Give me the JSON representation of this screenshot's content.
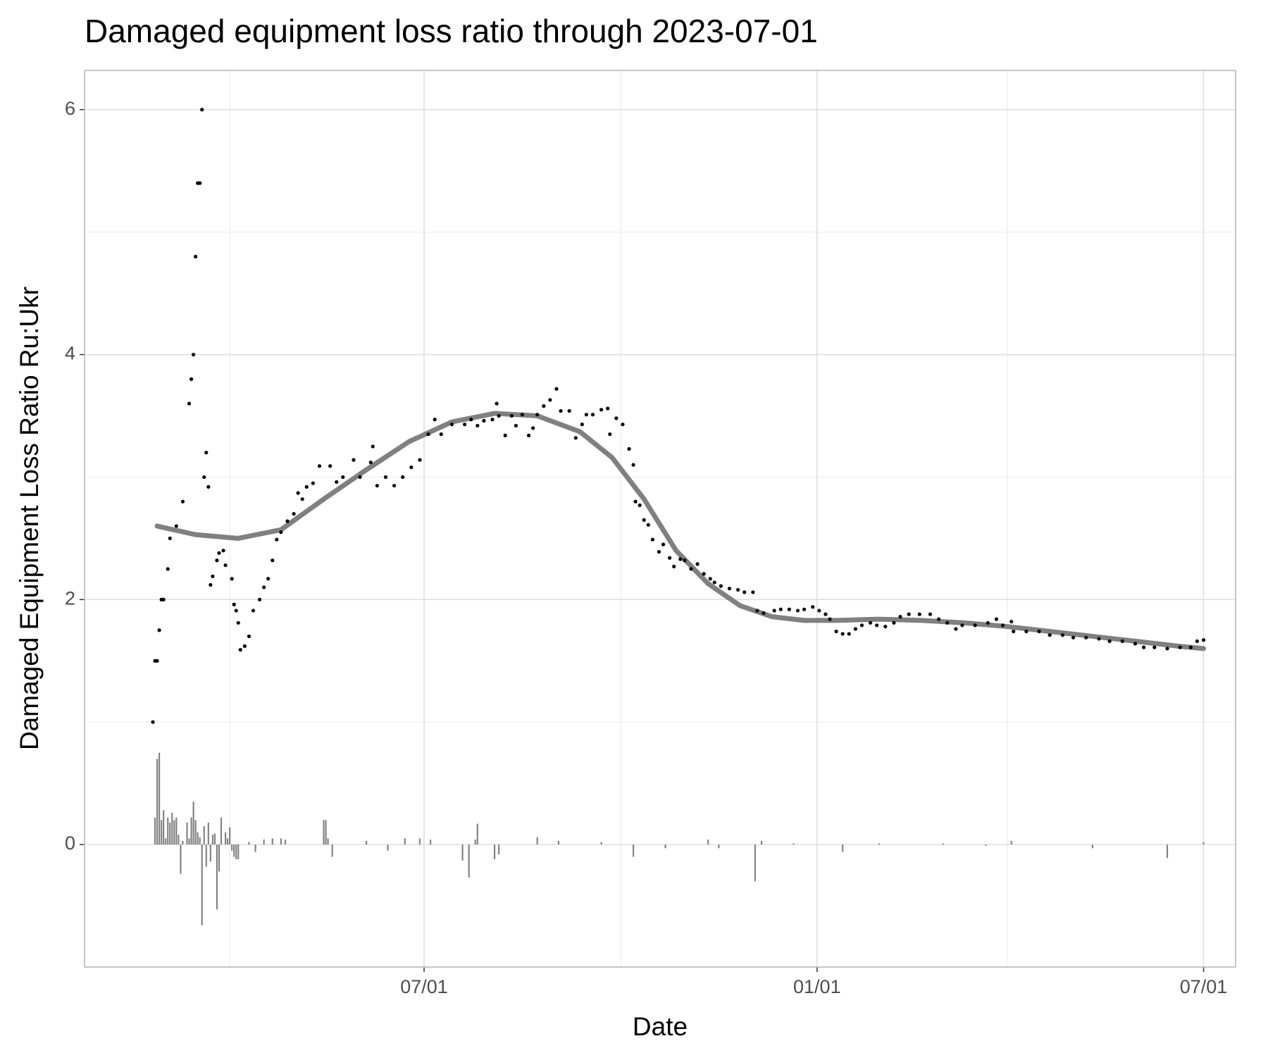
{
  "chart_data": {
    "type": "scatter",
    "title": "Damaged equipment loss ratio through 2023-07-01",
    "x_label": "Date",
    "y_label": "Damaged Equipment Loss Ratio Ru:Ukr",
    "xlim": [
      -32,
      507
    ],
    "ylim": [
      -1,
      6.32
    ],
    "xticks": [
      {
        "value": 127,
        "label": "07/01"
      },
      {
        "value": 311,
        "label": "01/01"
      },
      {
        "value": 492,
        "label": "07/01"
      }
    ],
    "yticks": [
      0,
      2,
      4,
      6
    ],
    "x_minor_ticks": [
      36,
      219,
      400
    ],
    "y_minor_ticks": [
      1,
      3,
      5
    ],
    "grid": true,
    "series": [
      {
        "type": "bar",
        "color": "#808080",
        "x": [
          1,
          2,
          3,
          4,
          5,
          6,
          7,
          8,
          9,
          10,
          11,
          12,
          13,
          14,
          16,
          17,
          18,
          19,
          20,
          21,
          22,
          23,
          24,
          25,
          26,
          27,
          28,
          29,
          30,
          31,
          32,
          34,
          35,
          36,
          37,
          38,
          39,
          40,
          45,
          48,
          52,
          56,
          60,
          62,
          80,
          81,
          82,
          84,
          100,
          110,
          118,
          125,
          130,
          145,
          148,
          151,
          152,
          160,
          162,
          180,
          190,
          210,
          225,
          240,
          260,
          265,
          282,
          285,
          300,
          323,
          340,
          370,
          390,
          402,
          440,
          475,
          492
        ],
        "values": [
          0.22,
          0.7,
          0.75,
          0.2,
          0.28,
          0.05,
          0.22,
          0.18,
          0.26,
          0.2,
          0.22,
          0.08,
          -0.24,
          0.03,
          0.18,
          0.05,
          0.22,
          0.35,
          0.2,
          0.1,
          0.06,
          -0.66,
          0.15,
          -0.18,
          0.18,
          -0.14,
          0.08,
          0.09,
          -0.53,
          -0.22,
          0.22,
          0.1,
          0.05,
          0.14,
          -0.05,
          -0.1,
          -0.12,
          -0.12,
          0.02,
          -0.06,
          0.04,
          0.05,
          0.05,
          0.04,
          0.2,
          0.2,
          0.05,
          -0.1,
          0.03,
          -0.05,
          0.05,
          0.05,
          0.04,
          -0.13,
          -0.27,
          0.04,
          0.17,
          -0.12,
          -0.08,
          0.06,
          0.03,
          0.02,
          -0.1,
          -0.03,
          0.04,
          -0.03,
          -0.3,
          0.03,
          0.01,
          -0.06,
          0.01,
          0.01,
          -0.01,
          0.03,
          -0.03,
          -0.11,
          0.02
        ]
      },
      {
        "type": "line",
        "color": "#808080",
        "x": [
          2,
          20,
          40,
          60,
          80,
          100,
          120,
          140,
          160,
          180,
          200,
          215,
          230,
          245,
          260,
          275,
          290,
          305,
          320,
          340,
          360,
          380,
          400,
          420,
          440,
          460,
          480,
          492
        ],
        "values": [
          2.6,
          2.53,
          2.5,
          2.57,
          2.82,
          3.06,
          3.29,
          3.45,
          3.52,
          3.5,
          3.37,
          3.16,
          2.82,
          2.4,
          2.13,
          1.95,
          1.86,
          1.83,
          1.83,
          1.84,
          1.83,
          1.81,
          1.78,
          1.74,
          1.7,
          1.66,
          1.62,
          1.6
        ]
      },
      {
        "type": "scatter",
        "color": "#000000",
        "x": [
          0,
          1,
          2,
          3,
          4,
          5,
          7,
          8,
          11,
          14,
          17,
          18,
          19,
          20,
          21,
          22,
          23,
          24,
          25,
          26,
          27,
          28,
          30,
          31,
          33,
          34,
          37,
          38,
          39,
          40,
          41,
          43,
          45,
          47,
          50,
          52,
          54,
          56,
          58,
          60,
          63,
          66,
          68,
          70,
          72,
          75,
          78,
          83,
          86,
          89,
          94,
          97,
          102,
          103,
          105,
          109,
          113,
          117,
          121,
          125,
          129,
          132,
          135,
          140,
          146,
          149,
          152,
          155,
          159,
          161,
          162,
          165,
          168,
          170,
          173,
          176,
          178,
          180,
          183,
          186,
          189,
          191,
          195,
          198,
          201,
          203,
          206,
          210,
          213,
          214,
          217,
          220,
          223,
          225,
          226,
          228,
          230,
          232,
          234,
          237,
          239,
          242,
          244,
          247,
          249,
          252,
          255,
          258,
          261,
          263,
          266,
          270,
          274,
          277,
          281,
          283,
          286,
          291,
          294,
          298,
          302,
          305,
          309,
          312,
          315,
          317,
          320,
          323,
          326,
          329,
          332,
          336,
          339,
          343,
          347,
          350,
          354,
          359,
          364,
          368,
          372,
          376,
          379,
          385,
          391,
          395,
          398,
          402,
          403,
          409,
          415,
          420,
          426,
          431,
          437,
          443,
          448,
          454,
          460,
          464,
          469,
          475,
          481,
          486,
          489,
          492
        ],
        "values": [
          1.0,
          1.5,
          1.5,
          1.75,
          2.0,
          2.0,
          2.25,
          2.5,
          2.6,
          2.8,
          3.6,
          3.8,
          4.0,
          4.8,
          5.4,
          5.4,
          6.0,
          3.0,
          3.2,
          2.92,
          2.12,
          2.19,
          2.32,
          2.38,
          2.4,
          2.28,
          2.17,
          1.96,
          1.91,
          1.81,
          1.59,
          1.62,
          1.7,
          1.91,
          2.0,
          2.1,
          2.17,
          2.32,
          2.49,
          2.55,
          2.64,
          2.7,
          2.87,
          2.82,
          2.92,
          2.95,
          3.09,
          3.09,
          2.96,
          3.0,
          3.14,
          3.0,
          3.12,
          3.25,
          2.93,
          3.0,
          2.93,
          3.0,
          3.08,
          3.14,
          3.35,
          3.47,
          3.35,
          3.43,
          3.43,
          3.47,
          3.42,
          3.46,
          3.47,
          3.6,
          3.5,
          3.34,
          3.5,
          3.42,
          3.51,
          3.34,
          3.4,
          3.51,
          3.58,
          3.63,
          3.72,
          3.54,
          3.54,
          3.32,
          3.43,
          3.51,
          3.51,
          3.55,
          3.56,
          3.35,
          3.48,
          3.43,
          3.23,
          3.1,
          2.8,
          2.77,
          2.65,
          2.61,
          2.49,
          2.39,
          2.45,
          2.34,
          2.27,
          2.33,
          2.32,
          2.25,
          2.29,
          2.21,
          2.17,
          2.14,
          2.11,
          2.09,
          2.08,
          2.06,
          2.06,
          1.91,
          1.89,
          1.91,
          1.92,
          1.92,
          1.91,
          1.92,
          1.94,
          1.91,
          1.88,
          1.84,
          1.74,
          1.72,
          1.72,
          1.76,
          1.79,
          1.81,
          1.79,
          1.78,
          1.81,
          1.86,
          1.88,
          1.88,
          1.88,
          1.84,
          1.81,
          1.76,
          1.79,
          1.79,
          1.81,
          1.84,
          1.79,
          1.82,
          1.74,
          1.74,
          1.74,
          1.71,
          1.71,
          1.69,
          1.69,
          1.68,
          1.66,
          1.66,
          1.64,
          1.61,
          1.61,
          1.6,
          1.61,
          1.61,
          1.66,
          1.67
        ]
      }
    ]
  }
}
